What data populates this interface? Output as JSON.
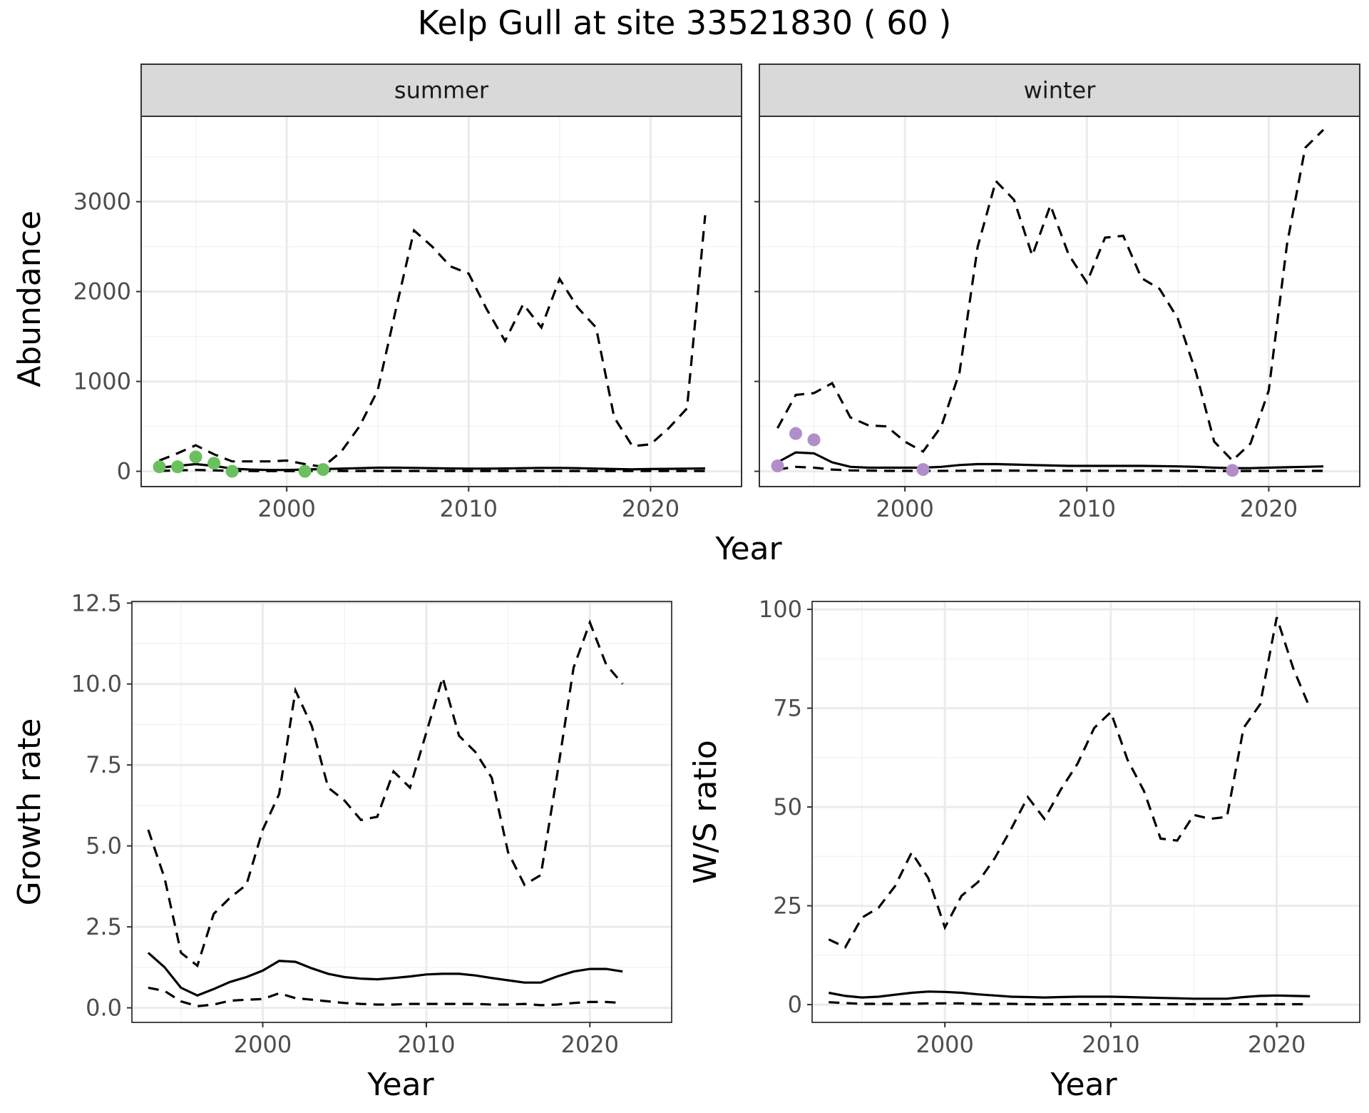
{
  "figure": {
    "title": "Kelp Gull at site 33521830 ( 60 )",
    "x_axis_label": "Year",
    "x_ticks": [
      2000,
      2010,
      2020
    ]
  },
  "colors": {
    "summer_points": "#6abf5e",
    "winter_points": "#b18ec9",
    "lines": "#000000",
    "strip": "#d9d9d9"
  },
  "chart_data": [
    {
      "id": "abundance-summer",
      "type": "line",
      "strip_label": "summer",
      "ylabel": "Abundance",
      "xlabel": "Year",
      "xlim": [
        1992,
        2025
      ],
      "ylim": [
        -170,
        3950
      ],
      "y_ticks": [
        0,
        1000,
        2000,
        3000
      ],
      "x": [
        1993,
        1994,
        1995,
        1996,
        1997,
        1998,
        1999,
        2000,
        2001,
        2002,
        2003,
        2004,
        2005,
        2006,
        2007,
        2008,
        2009,
        2010,
        2011,
        2012,
        2013,
        2014,
        2015,
        2016,
        2017,
        2018,
        2019,
        2020,
        2021,
        2022,
        2023
      ],
      "series": [
        {
          "role": "estimate",
          "style": "solid",
          "values": [
            40,
            60,
            80,
            60,
            30,
            20,
            15,
            15,
            20,
            25,
            30,
            35,
            40,
            40,
            38,
            35,
            32,
            30,
            30,
            32,
            35,
            38,
            38,
            35,
            30,
            25,
            22,
            25,
            28,
            30,
            32
          ]
        },
        {
          "role": "upper",
          "style": "dashed",
          "values": [
            120,
            200,
            290,
            190,
            110,
            110,
            110,
            120,
            80,
            50,
            220,
            500,
            900,
            1800,
            2680,
            2500,
            2280,
            2200,
            1800,
            1450,
            1860,
            1600,
            2140,
            1820,
            1600,
            600,
            280,
            300,
            480,
            700,
            2850
          ]
        },
        {
          "role": "lower",
          "style": "dashed",
          "values": [
            5,
            10,
            15,
            10,
            5,
            3,
            2,
            2,
            3,
            3,
            4,
            4,
            4,
            4,
            4,
            4,
            4,
            4,
            4,
            4,
            4,
            4,
            4,
            4,
            3,
            3,
            3,
            3,
            3,
            3,
            3
          ]
        }
      ],
      "points": {
        "x": [
          1993,
          1994,
          1995,
          1996,
          1997,
          2001,
          2002
        ],
        "y": [
          50,
          50,
          160,
          90,
          0,
          0,
          20
        ]
      }
    },
    {
      "id": "abundance-winter",
      "type": "line",
      "strip_label": "winter",
      "ylabel": "",
      "xlabel": "Year",
      "xlim": [
        1992,
        2025
      ],
      "ylim": [
        -170,
        3950
      ],
      "y_ticks": [
        0,
        1000,
        2000,
        3000
      ],
      "x": [
        1993,
        1994,
        1995,
        1996,
        1997,
        1998,
        1999,
        2000,
        2001,
        2002,
        2003,
        2004,
        2005,
        2006,
        2007,
        2008,
        2009,
        2010,
        2011,
        2012,
        2013,
        2014,
        2015,
        2016,
        2017,
        2018,
        2019,
        2020,
        2021,
        2022,
        2023
      ],
      "series": [
        {
          "role": "estimate",
          "style": "solid",
          "values": [
            100,
            210,
            200,
            100,
            50,
            40,
            40,
            40,
            40,
            50,
            70,
            80,
            80,
            75,
            70,
            65,
            60,
            60,
            60,
            60,
            60,
            58,
            55,
            50,
            40,
            35,
            35,
            40,
            45,
            50,
            55
          ]
        },
        {
          "role": "upper",
          "style": "dashed",
          "values": [
            480,
            850,
            870,
            980,
            600,
            510,
            500,
            330,
            220,
            500,
            1100,
            2500,
            3230,
            3020,
            2400,
            2960,
            2410,
            2100,
            2600,
            2620,
            2150,
            2030,
            1700,
            1100,
            330,
            120,
            310,
            900,
            2520,
            3600,
            3800
          ]
        },
        {
          "role": "lower",
          "style": "dashed",
          "values": [
            20,
            50,
            40,
            20,
            10,
            8,
            5,
            5,
            5,
            5,
            6,
            7,
            8,
            8,
            7,
            7,
            6,
            6,
            6,
            6,
            6,
            6,
            5,
            5,
            4,
            4,
            4,
            4,
            5,
            5,
            5
          ]
        }
      ],
      "points": {
        "x": [
          1993,
          1994,
          1995,
          2001,
          2018
        ],
        "y": [
          60,
          420,
          350,
          20,
          10
        ]
      }
    },
    {
      "id": "growth-rate",
      "type": "line",
      "strip_label": "",
      "ylabel": "Growth rate",
      "xlabel": "Year",
      "xlim": [
        1992,
        2025
      ],
      "ylim": [
        -0.45,
        12.55
      ],
      "y_ticks": [
        0.0,
        2.5,
        5.0,
        7.5,
        10.0,
        12.5
      ],
      "y_tick_labels": [
        "0.0",
        "2.5",
        "5.0",
        "7.5",
        "10.0",
        "12.5"
      ],
      "x": [
        1993,
        1994,
        1995,
        1996,
        1997,
        1998,
        1999,
        2000,
        2001,
        2002,
        2003,
        2004,
        2005,
        2006,
        2007,
        2008,
        2009,
        2010,
        2011,
        2012,
        2013,
        2014,
        2015,
        2016,
        2017,
        2018,
        2019,
        2020,
        2021,
        2022
      ],
      "series": [
        {
          "role": "estimate",
          "style": "solid",
          "values": [
            1.7,
            1.25,
            0.62,
            0.38,
            0.58,
            0.8,
            0.95,
            1.15,
            1.45,
            1.42,
            1.22,
            1.05,
            0.95,
            0.9,
            0.88,
            0.92,
            0.97,
            1.03,
            1.05,
            1.05,
            1.0,
            0.92,
            0.85,
            0.78,
            0.78,
            0.97,
            1.12,
            1.2,
            1.2,
            1.12
          ]
        },
        {
          "role": "upper",
          "style": "dashed",
          "values": [
            5.5,
            4.0,
            1.7,
            1.3,
            2.9,
            3.4,
            3.8,
            5.5,
            6.6,
            9.8,
            8.7,
            6.8,
            6.4,
            5.8,
            5.9,
            7.3,
            6.8,
            8.5,
            10.2,
            8.4,
            7.9,
            7.1,
            4.8,
            3.8,
            4.1,
            7.2,
            10.5,
            11.9,
            10.6,
            10.0
          ]
        },
        {
          "role": "lower",
          "style": "dashed",
          "values": [
            0.62,
            0.52,
            0.2,
            0.05,
            0.1,
            0.22,
            0.25,
            0.27,
            0.45,
            0.3,
            0.25,
            0.2,
            0.15,
            0.12,
            0.1,
            0.1,
            0.12,
            0.12,
            0.12,
            0.12,
            0.12,
            0.1,
            0.1,
            0.12,
            0.08,
            0.1,
            0.15,
            0.18,
            0.18,
            0.15
          ]
        }
      ]
    },
    {
      "id": "ws-ratio",
      "type": "line",
      "strip_label": "",
      "ylabel": "W/S ratio",
      "xlabel": "Year",
      "xlim": [
        1992,
        2025
      ],
      "ylim": [
        -4.5,
        102
      ],
      "y_ticks": [
        0,
        25,
        50,
        75,
        100
      ],
      "x": [
        1993,
        1994,
        1995,
        1996,
        1997,
        1998,
        1999,
        2000,
        2001,
        2002,
        2003,
        2004,
        2005,
        2006,
        2007,
        2008,
        2009,
        2010,
        2011,
        2012,
        2013,
        2014,
        2015,
        2016,
        2017,
        2018,
        2019,
        2020,
        2021,
        2022
      ],
      "series": [
        {
          "role": "estimate",
          "style": "solid",
          "values": [
            3.0,
            2.2,
            1.8,
            2.0,
            2.5,
            3.0,
            3.3,
            3.2,
            3.0,
            2.6,
            2.3,
            2.0,
            1.9,
            1.8,
            1.9,
            2.0,
            2.0,
            2.0,
            1.9,
            1.8,
            1.7,
            1.6,
            1.5,
            1.5,
            1.5,
            1.9,
            2.2,
            2.3,
            2.2,
            2.1
          ]
        },
        {
          "role": "upper",
          "style": "dashed",
          "values": [
            16.5,
            14.5,
            22.0,
            24.5,
            30.0,
            38.5,
            32.0,
            19.5,
            27.5,
            31.0,
            37.0,
            44.5,
            52.5,
            47.0,
            54.5,
            61.0,
            70.0,
            74.0,
            62.0,
            54.0,
            42.0,
            41.5,
            48.0,
            47.0,
            47.5,
            70.0,
            76.0,
            98.0,
            85.0,
            75.0
          ]
        },
        {
          "role": "lower",
          "style": "dashed",
          "values": [
            0.6,
            0.4,
            0.2,
            0.2,
            0.2,
            0.2,
            0.3,
            0.3,
            0.3,
            0.2,
            0.2,
            0.2,
            0.1,
            0.1,
            0.1,
            0.1,
            0.1,
            0.1,
            0.1,
            0.1,
            0.1,
            0.1,
            0.1,
            0.1,
            0.1,
            0.1,
            0.1,
            0.1,
            0.1,
            0.1
          ]
        }
      ]
    }
  ]
}
